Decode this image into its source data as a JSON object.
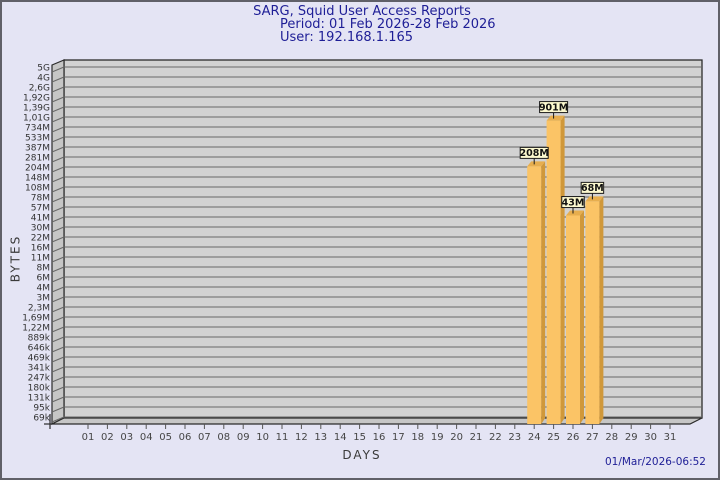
{
  "chart_data": {
    "type": "bar",
    "title": "SARG, Squid User Access Reports",
    "period": "Period: 01 Feb 2026-28 Feb 2026",
    "user": "User: 192.168.1.165",
    "xlabel": "DAYS",
    "ylabel": "BYTES",
    "timestamp": "01/Mar/2026-06:52",
    "y_axis_scale": "logarithmic",
    "y_ticks": [
      "5G",
      "4G",
      "2,6G",
      "1,92G",
      "1,39G",
      "1,01G",
      "734M",
      "533M",
      "387M",
      "281M",
      "204M",
      "148M",
      "108M",
      "78M",
      "57M",
      "41M",
      "30M",
      "22M",
      "16M",
      "11M",
      "8M",
      "6M",
      "4M",
      "3M",
      "2,3M",
      "1,69M",
      "1,22M",
      "889k",
      "646k",
      "469k",
      "341k",
      "247k",
      "180k",
      "131k",
      "95k",
      "69k"
    ],
    "x_categories": [
      "01",
      "02",
      "03",
      "04",
      "05",
      "06",
      "07",
      "08",
      "09",
      "10",
      "11",
      "12",
      "13",
      "14",
      "15",
      "16",
      "17",
      "18",
      "19",
      "20",
      "21",
      "22",
      "23",
      "24",
      "25",
      "26",
      "27",
      "28",
      "29",
      "30",
      "31"
    ],
    "bars": [
      {
        "day": "24",
        "value": "208M"
      },
      {
        "day": "25",
        "value": "901M"
      },
      {
        "day": "26",
        "value": "43M"
      },
      {
        "day": "27",
        "value": "68M"
      }
    ],
    "colors": {
      "background": "#e4e4f4",
      "plot_background": "#d2d2d2",
      "wall": "#c6c6c6",
      "gridline": "#686868",
      "plot_border": "#2b2b2b",
      "bar_front": "#fbc466",
      "bar_side": "#d0983a",
      "bar_top": "#e7ae4e",
      "value_box_bg": "#fcf9cf",
      "value_box_border": "#1a1a1a",
      "title_color": "#1e1e96",
      "axis_text": "#333333"
    }
  }
}
